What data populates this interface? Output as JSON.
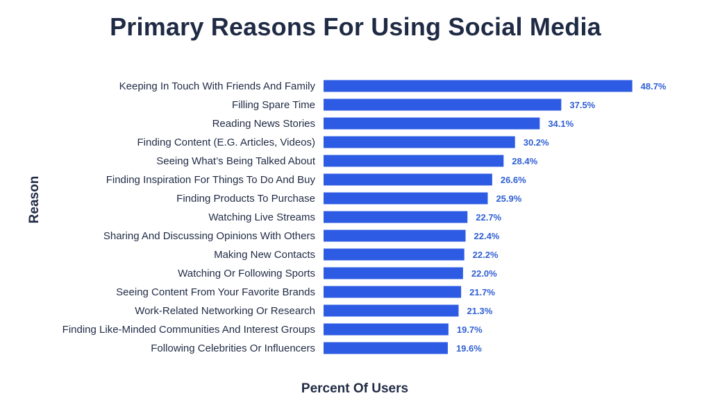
{
  "chart_data": {
    "type": "bar",
    "orientation": "horizontal",
    "title": "Primary Reasons For Using Social Media",
    "xlabel": "Percent Of Users",
    "ylabel": "Reason",
    "bar_color": "#2d5be3",
    "label_color": "#2f5fd3",
    "value_suffix": "%",
    "xlim": [
      0,
      50
    ],
    "grid": false,
    "categories": [
      "Keeping In Touch With Friends And Family",
      "Filling Spare Time",
      "Reading News Stories",
      "Finding Content (E.G. Articles, Videos)",
      "Seeing What’s Being Talked About",
      "Finding Inspiration For Things To Do And Buy",
      "Finding Products To Purchase",
      "Watching Live Streams",
      "Sharing And Discussing Opinions With Others",
      "Making New Contacts",
      "Watching Or Following Sports",
      "Seeing Content From Your Favorite Brands",
      "Work-Related Networking Or Research",
      "Finding Like-Minded Communities And Interest Groups",
      "Following Celebrities Or Influencers"
    ],
    "values": [
      48.7,
      37.5,
      34.1,
      30.2,
      28.4,
      26.6,
      25.9,
      22.7,
      22.4,
      22.2,
      22.0,
      21.7,
      21.3,
      19.7,
      19.6
    ],
    "value_labels": [
      "48.7%",
      "37.5%",
      "34.1%",
      "30.2%",
      "28.4%",
      "26.6%",
      "25.9%",
      "22.7%",
      "22.4%",
      "22.2%",
      "22.0%",
      "21.7%",
      "21.3%",
      "19.7%",
      "19.6%"
    ]
  }
}
